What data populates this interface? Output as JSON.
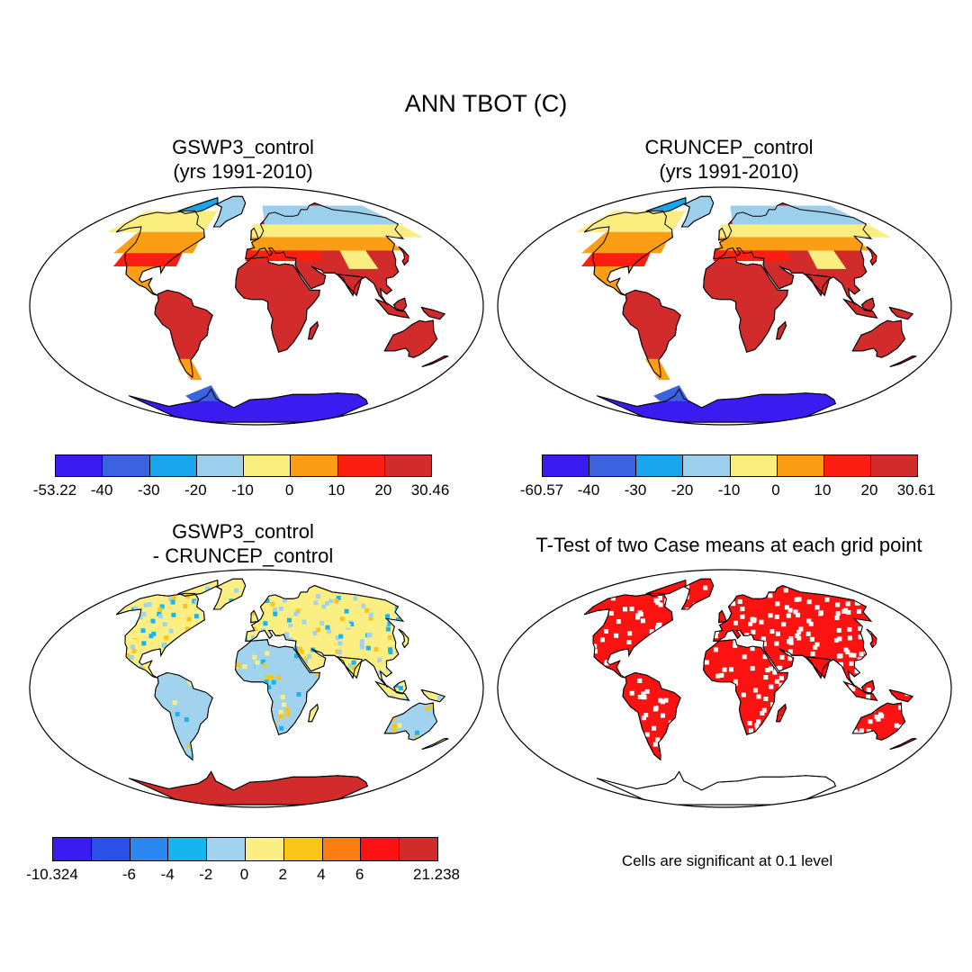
{
  "title": "ANN TBOT (C)",
  "panels": {
    "tl": {
      "title1": "GSWP3_control",
      "title2": "(yrs 1991-2010)"
    },
    "tr": {
      "title1": "CRUNCEP_control",
      "title2": "(yrs 1991-2010)"
    },
    "bl": {
      "title1": "GSWP3_control",
      "title2": "- CRUNCEP_control"
    },
    "br": {
      "title1": "T-Test of two Case means at each grid point"
    }
  },
  "colorbars": {
    "tl": {
      "colors": [
        "#3a1cf0",
        "#3d62df",
        "#19a6ec",
        "#9ccfec",
        "#fbee80",
        "#fb9e15",
        "#fc1e10",
        "#d22b2b"
      ],
      "ticks": [
        "-53.22",
        "-40",
        "-30",
        "-20",
        "-10",
        "0",
        "10",
        "20",
        "30.46"
      ]
    },
    "tr": {
      "colors": [
        "#3a1cf0",
        "#3d62df",
        "#19a6ec",
        "#9ccfec",
        "#fbee80",
        "#fb9e15",
        "#fc1e10",
        "#d22b2b"
      ],
      "ticks": [
        "-60.57",
        "-40",
        "-30",
        "-20",
        "-10",
        "0",
        "10",
        "20",
        "30.61"
      ]
    },
    "bl": {
      "colors": [
        "#3a1cf0",
        "#2a50e6",
        "#2a86f0",
        "#17b5f0",
        "#a2d3ee",
        "#fbef84",
        "#fbc418",
        "#fb7d12",
        "#fc1210",
        "#d22b2b"
      ],
      "ticks": [
        "-10.324",
        "",
        "-6",
        "-4",
        "-2",
        "0",
        "2",
        "4",
        "6",
        "",
        "21.238"
      ]
    }
  },
  "note": "Cells are significant at 0.1 level"
}
